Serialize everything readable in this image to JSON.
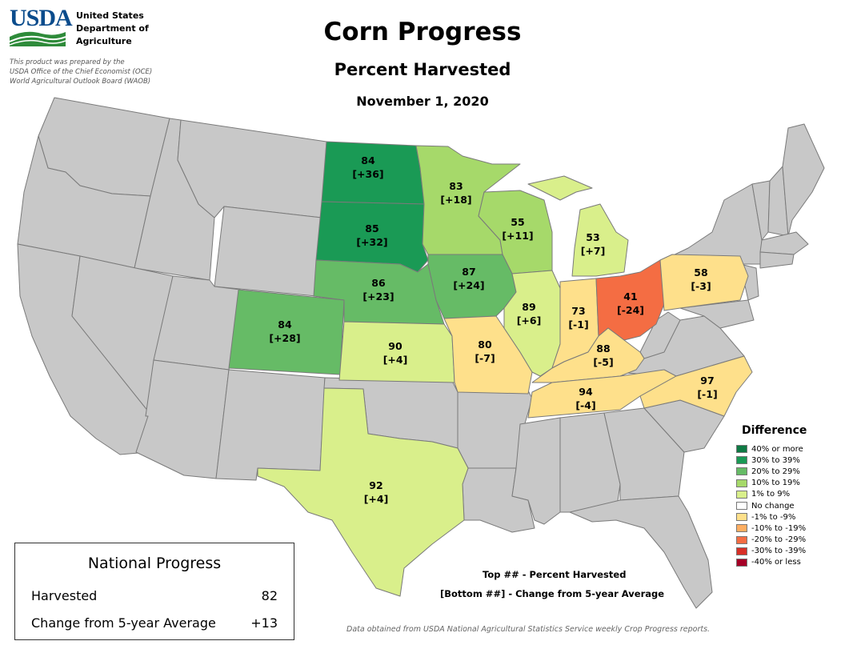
{
  "header": {
    "logo": "USDA",
    "agency_lines": [
      "United States",
      "Department of",
      "Agriculture"
    ],
    "prepared_lines": [
      "This product was prepared by the",
      "USDA Office of the Chief Economist (OCE)",
      "World Agricultural Outlook Board (WAOB)"
    ],
    "title": "Corn Progress",
    "subtitle": "Percent Harvested",
    "date": "November 1, 2020"
  },
  "colors": {
    "no_data": "#c8c8c8",
    "g40": "#0f7a44",
    "g30": "#1a9a55",
    "g20": "#66bb66",
    "g10": "#a6d96a",
    "g1": "#d9ef8b",
    "none": "#ffffff",
    "n1": "#fee08b",
    "n10": "#fdae61",
    "n20": "#f46d43",
    "n30": "#d73027",
    "n40": "#a50026"
  },
  "states": [
    {
      "id": "ND",
      "value": "84",
      "diff": "[+36]",
      "color": "g30"
    },
    {
      "id": "SD",
      "value": "85",
      "diff": "[+32]",
      "color": "g30"
    },
    {
      "id": "MN",
      "value": "83",
      "diff": "[+18]",
      "color": "g10"
    },
    {
      "id": "WI",
      "value": "55",
      "diff": "[+11]",
      "color": "g10"
    },
    {
      "id": "MI",
      "value": "53",
      "diff": "[+7]",
      "color": "g1"
    },
    {
      "id": "NE",
      "value": "86",
      "diff": "[+23]",
      "color": "g20"
    },
    {
      "id": "IA",
      "value": "87",
      "diff": "[+24]",
      "color": "g20"
    },
    {
      "id": "CO",
      "value": "84",
      "diff": "[+28]",
      "color": "g20"
    },
    {
      "id": "KS",
      "value": "90",
      "diff": "[+4]",
      "color": "g1"
    },
    {
      "id": "MO",
      "value": "80",
      "diff": "[-7]",
      "color": "n1"
    },
    {
      "id": "IL",
      "value": "89",
      "diff": "[+6]",
      "color": "g1"
    },
    {
      "id": "IN",
      "value": "73",
      "diff": "[-1]",
      "color": "n1"
    },
    {
      "id": "OH",
      "value": "41",
      "diff": "[-24]",
      "color": "n20"
    },
    {
      "id": "PA",
      "value": "58",
      "diff": "[-3]",
      "color": "n1"
    },
    {
      "id": "KY",
      "value": "88",
      "diff": "[-5]",
      "color": "n1"
    },
    {
      "id": "TN",
      "value": "94",
      "diff": "[-4]",
      "color": "n1"
    },
    {
      "id": "NC",
      "value": "97",
      "diff": "[-1]",
      "color": "n1"
    },
    {
      "id": "TX",
      "value": "92",
      "diff": "[+4]",
      "color": "g1"
    }
  ],
  "legend": {
    "title": "Difference",
    "items": [
      {
        "label": "40% or more",
        "color": "#0f7a44"
      },
      {
        "label": "30% to 39%",
        "color": "#1a9a55"
      },
      {
        "label": "20% to 29%",
        "color": "#66bb66"
      },
      {
        "label": "10% to 19%",
        "color": "#a6d96a"
      },
      {
        "label": "1% to 9%",
        "color": "#d9ef8b"
      },
      {
        "label": "No change",
        "color": "#ffffff"
      },
      {
        "label": "-1% to -9%",
        "color": "#fee08b"
      },
      {
        "label": "-10% to -19%",
        "color": "#fdae61"
      },
      {
        "label": "-20% to -29%",
        "color": "#f46d43"
      },
      {
        "label": "-30% to -39%",
        "color": "#d73027"
      },
      {
        "label": "-40% or less",
        "color": "#a50026"
      }
    ]
  },
  "national": {
    "title": "National Progress",
    "rows": [
      {
        "label": "Harvested",
        "value": "82"
      },
      {
        "label": "Change from 5-year Average",
        "value": "+13"
      }
    ]
  },
  "key": {
    "top": "Top ## - Percent Harvested",
    "bottom": "[Bottom ##] - Change from 5-year Average"
  },
  "source": "Data obtained from USDA National Agricultural Statistics Service weekly Crop Progress reports."
}
